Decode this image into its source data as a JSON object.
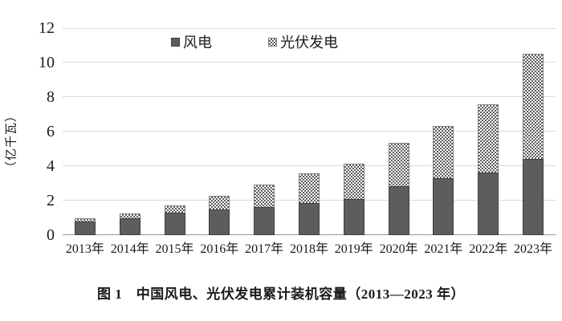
{
  "figure": {
    "caption": "图 1　中国风电、光伏发电累计装机容量（2013—2023 年）"
  },
  "chart_data": {
    "type": "bar",
    "stacked": true,
    "categories": [
      "2013年",
      "2014年",
      "2015年",
      "2016年",
      "2017年",
      "2018年",
      "2019年",
      "2020年",
      "2021年",
      "2022年",
      "2023年"
    ],
    "series": [
      {
        "name": "风电",
        "values": [
          0.77,
          0.96,
          1.29,
          1.49,
          1.64,
          1.84,
          2.1,
          2.82,
          3.28,
          3.65,
          4.41
        ],
        "style": "solid",
        "color": "#5d5d5d"
      },
      {
        "name": "光伏发电",
        "values": [
          0.19,
          0.28,
          0.43,
          0.77,
          1.3,
          1.74,
          2.04,
          2.53,
          3.06,
          3.93,
          6.09
        ],
        "style": "checker",
        "color": "#606060"
      }
    ],
    "title": "",
    "xlabel": "",
    "ylabel": "（亿千瓦）",
    "ylim": [
      0,
      12
    ],
    "ytick_step": 2,
    "grid": true,
    "grid_color": "#d9d9d9",
    "axis_color": "#999999",
    "legend_position": "top-center"
  }
}
